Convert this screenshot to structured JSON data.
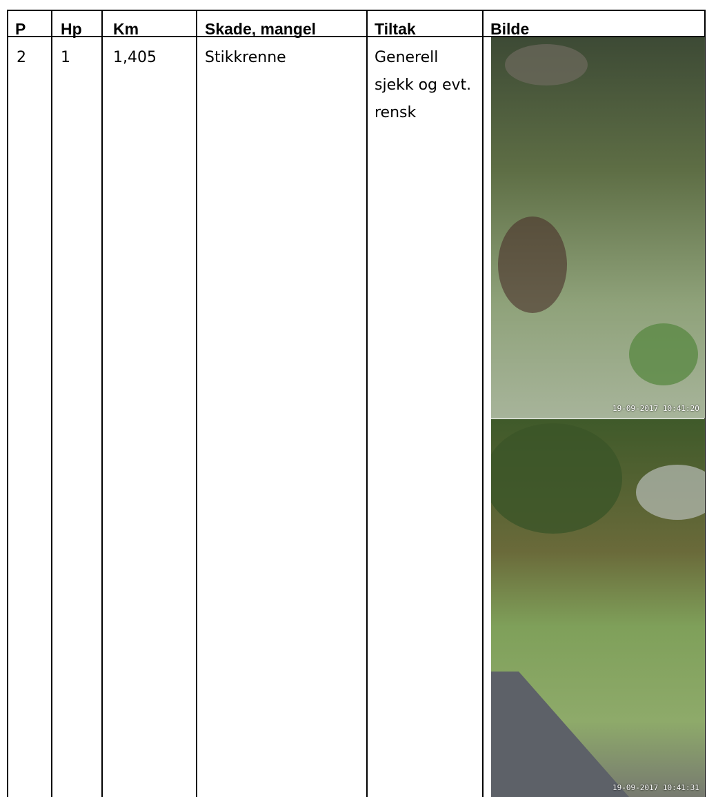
{
  "table": {
    "header": [
      "P",
      "Hp",
      "Km",
      "Skade, mangel",
      "Tiltak",
      "Bilde"
    ],
    "rows": [
      [
        "2",
        "1",
        "1,405",
        "Stikkrenne",
        "Generell sjekk og evt. rensk"
      ]
    ],
    "images": [
      {
        "timestamp": "19-09-2017 10:41:20"
      },
      {
        "timestamp": "19-09-2017 10:41:31"
      }
    ]
  }
}
